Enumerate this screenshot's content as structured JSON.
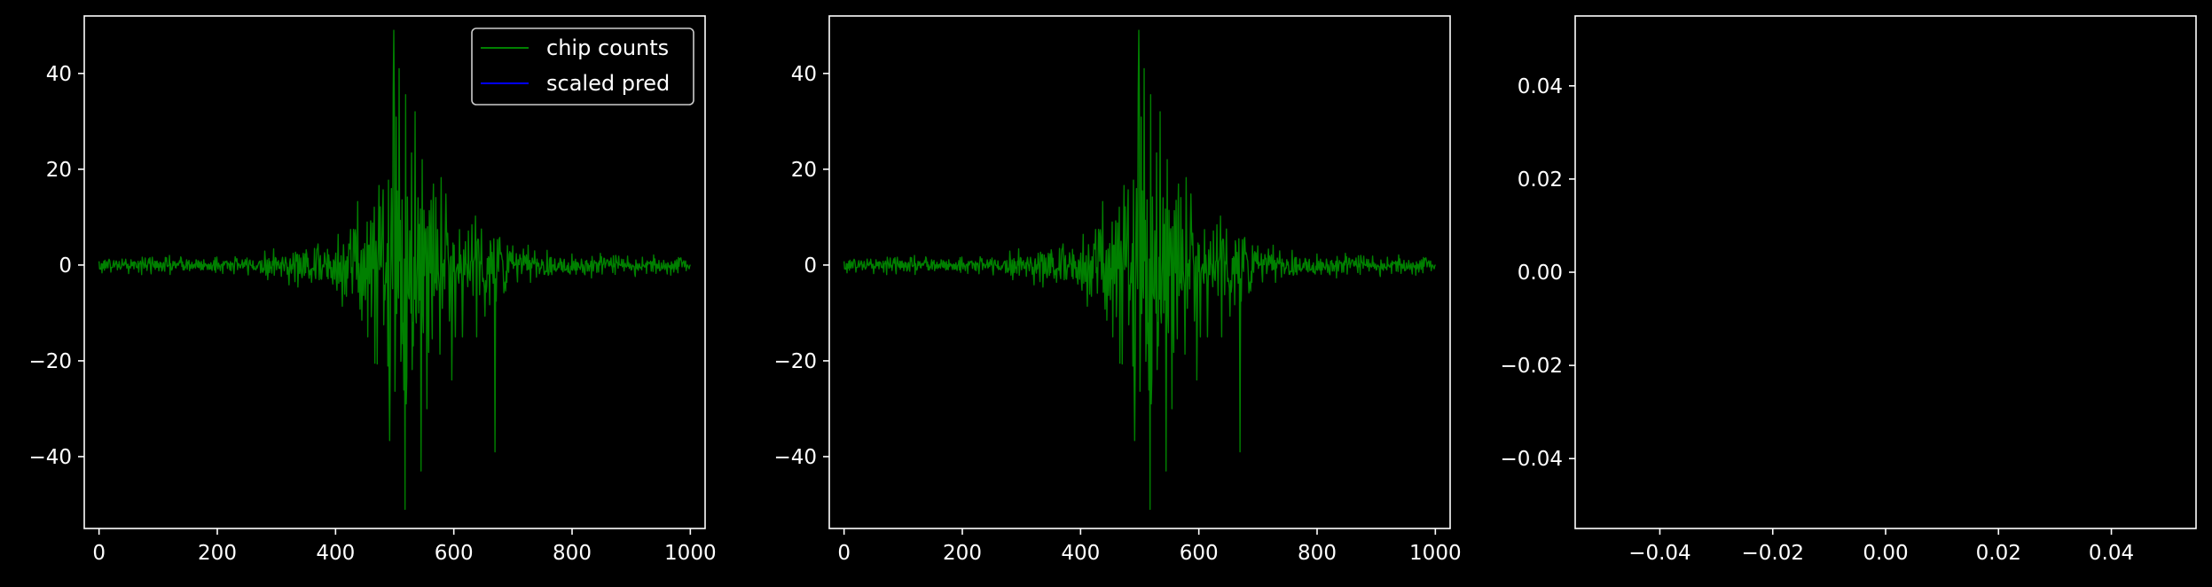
{
  "colors": {
    "background": "#000000",
    "axes": "#ffffff",
    "chip_counts": "#008000",
    "scaled_pred": "#0000ff"
  },
  "legend": {
    "placement": "top-right",
    "entries": [
      "chip counts",
      "scaled pred"
    ]
  },
  "chart_data": [
    {
      "type": "line",
      "title": "",
      "xlabel": "",
      "ylabel": "",
      "xlim": [
        -25,
        1025
      ],
      "ylim": [
        -55,
        52
      ],
      "xticks": [
        0,
        200,
        400,
        600,
        800,
        1000
      ],
      "yticks": [
        -40,
        -20,
        0,
        20,
        40
      ],
      "xtick_labels": [
        "0",
        "200",
        "400",
        "600",
        "800",
        "1000"
      ],
      "ytick_labels": [
        "−40",
        "−20",
        "0",
        "20",
        "40"
      ],
      "grid": false,
      "legend": true,
      "series": [
        {
          "name": "chip counts",
          "color": "#008000",
          "generator": "envelope",
          "x_range": [
            0,
            1000
          ],
          "points": 1000,
          "envelope": [
            [
              0,
              2
            ],
            [
              250,
              2
            ],
            [
              350,
              5
            ],
            [
              400,
              8
            ],
            [
              450,
              15
            ],
            [
              480,
              25
            ],
            [
              500,
              48
            ],
            [
              520,
              40
            ],
            [
              540,
              25
            ],
            [
              580,
              18
            ],
            [
              600,
              15
            ],
            [
              640,
              15
            ],
            [
              670,
              12
            ],
            [
              700,
              5
            ],
            [
              760,
              3
            ],
            [
              1000,
              2
            ]
          ],
          "extremes": [
            [
              498,
              49
            ],
            [
              508,
              41
            ],
            [
              535,
              32
            ],
            [
              518,
              -51
            ],
            [
              545,
              -43
            ],
            [
              670,
              -39
            ],
            [
              597,
              -24
            ],
            [
              555,
              -30
            ]
          ]
        },
        {
          "name": "scaled pred",
          "color": "#0000ff",
          "x": [],
          "y": []
        }
      ]
    },
    {
      "type": "line",
      "title": "",
      "xlabel": "",
      "ylabel": "",
      "xlim": [
        -25,
        1025
      ],
      "ylim": [
        -55,
        52
      ],
      "xticks": [
        0,
        200,
        400,
        600,
        800,
        1000
      ],
      "yticks": [
        -40,
        -20,
        0,
        20,
        40
      ],
      "xtick_labels": [
        "0",
        "200",
        "400",
        "600",
        "800",
        "1000"
      ],
      "ytick_labels": [
        "−40",
        "−20",
        "0",
        "20",
        "40"
      ],
      "grid": false,
      "legend": false,
      "series": [
        {
          "color": "#008000",
          "generator": "envelope",
          "x_range": [
            0,
            1000
          ],
          "points": 1000,
          "envelope": [
            [
              0,
              2
            ],
            [
              250,
              2
            ],
            [
              350,
              5
            ],
            [
              400,
              8
            ],
            [
              450,
              15
            ],
            [
              480,
              25
            ],
            [
              500,
              48
            ],
            [
              520,
              40
            ],
            [
              540,
              25
            ],
            [
              580,
              18
            ],
            [
              600,
              15
            ],
            [
              640,
              15
            ],
            [
              670,
              12
            ],
            [
              700,
              5
            ],
            [
              760,
              3
            ],
            [
              1000,
              2
            ]
          ],
          "extremes": [
            [
              498,
              49
            ],
            [
              508,
              41
            ],
            [
              535,
              32
            ],
            [
              518,
              -51
            ],
            [
              545,
              -43
            ],
            [
              670,
              -39
            ],
            [
              597,
              -24
            ],
            [
              555,
              -30
            ]
          ]
        }
      ]
    },
    {
      "type": "line",
      "title": "",
      "xlabel": "",
      "ylabel": "",
      "xlim": [
        -0.055,
        0.055
      ],
      "ylim": [
        -0.055,
        0.055
      ],
      "xticks": [
        -0.04,
        -0.02,
        0.0,
        0.02,
        0.04
      ],
      "yticks": [
        -0.04,
        -0.02,
        0.0,
        0.02,
        0.04
      ],
      "xtick_labels": [
        "−0.04",
        "−0.02",
        "0.00",
        "0.02",
        "0.04"
      ],
      "ytick_labels": [
        "−0.04",
        "−0.02",
        "0.00",
        "0.02",
        "0.04"
      ],
      "grid": false,
      "legend": false,
      "series": []
    }
  ]
}
